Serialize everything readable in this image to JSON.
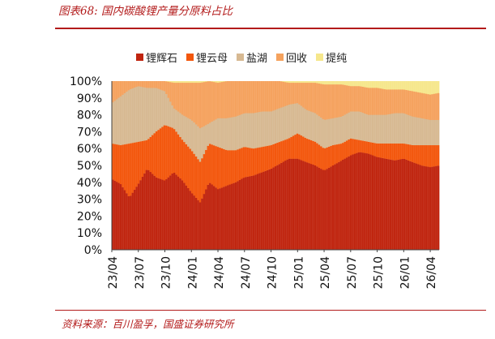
{
  "figure": {
    "title": "图表68: 国内碳酸锂产量分原料占比",
    "source": "资料来源：百川盈孚，国盛证券研究所"
  },
  "colors": {
    "brand_red": "#b31b1b"
  },
  "chart_data": {
    "type": "bar",
    "stacked": true,
    "percent_stacked": true,
    "title": "",
    "xlabel": "",
    "ylabel": "",
    "ylim": [
      0,
      100
    ],
    "y_ticks": [
      "0%",
      "10%",
      "20%",
      "30%",
      "40%",
      "50%",
      "60%",
      "70%",
      "80%",
      "90%",
      "100%"
    ],
    "x_ticks": [
      "23/04",
      "23/07",
      "23/10",
      "24/01",
      "24/04",
      "24/07",
      "24/10",
      "25/01",
      "25/04",
      "25/07",
      "25/10",
      "26/01",
      "26/04"
    ],
    "x_range": [
      "2023-04",
      "2026-05"
    ],
    "legend_position": "top",
    "grid": false,
    "series": [
      {
        "name": "锂辉石",
        "color": "#c0250f",
        "points": [
          [
            "2023-04",
            42
          ],
          [
            "2023-05",
            39
          ],
          [
            "2023-06",
            31
          ],
          [
            "2023-07",
            39
          ],
          [
            "2023-08",
            48
          ],
          [
            "2023-09",
            43
          ],
          [
            "2023-10",
            41
          ],
          [
            "2023-11",
            46
          ],
          [
            "2023-12",
            41
          ],
          [
            "2024-01",
            34
          ],
          [
            "2024-02",
            28
          ],
          [
            "2024-03",
            40
          ],
          [
            "2024-04",
            36
          ],
          [
            "2024-05",
            38
          ],
          [
            "2024-06",
            40
          ],
          [
            "2024-07",
            43
          ],
          [
            "2024-08",
            44
          ],
          [
            "2024-09",
            46
          ],
          [
            "2024-10",
            48
          ],
          [
            "2024-11",
            51
          ],
          [
            "2024-12",
            54
          ],
          [
            "2025-01",
            54
          ],
          [
            "2025-02",
            52
          ],
          [
            "2025-03",
            50
          ],
          [
            "2025-04",
            47
          ],
          [
            "2025-05",
            50
          ],
          [
            "2025-06",
            53
          ],
          [
            "2025-07",
            56
          ],
          [
            "2025-08",
            58
          ],
          [
            "2025-09",
            57
          ],
          [
            "2025-10",
            55
          ],
          [
            "2025-11",
            54
          ],
          [
            "2025-12",
            53
          ],
          [
            "2026-01",
            54
          ],
          [
            "2026-02",
            52
          ],
          [
            "2026-03",
            50
          ],
          [
            "2026-04",
            49
          ],
          [
            "2026-05",
            50
          ]
        ]
      },
      {
        "name": "锂云母",
        "color": "#f3570d",
        "points": [
          [
            "2023-04",
            21
          ],
          [
            "2023-05",
            23
          ],
          [
            "2023-06",
            32
          ],
          [
            "2023-07",
            25
          ],
          [
            "2023-08",
            17
          ],
          [
            "2023-09",
            27
          ],
          [
            "2023-10",
            33
          ],
          [
            "2023-11",
            26
          ],
          [
            "2023-12",
            24
          ],
          [
            "2024-01",
            25
          ],
          [
            "2024-02",
            24
          ],
          [
            "2024-03",
            23
          ],
          [
            "2024-04",
            25
          ],
          [
            "2024-05",
            21
          ],
          [
            "2024-06",
            19
          ],
          [
            "2024-07",
            18
          ],
          [
            "2024-08",
            16
          ],
          [
            "2024-09",
            15
          ],
          [
            "2024-10",
            14
          ],
          [
            "2024-11",
            13
          ],
          [
            "2024-12",
            12
          ],
          [
            "2025-01",
            15
          ],
          [
            "2025-02",
            14
          ],
          [
            "2025-03",
            14
          ],
          [
            "2025-04",
            13
          ],
          [
            "2025-05",
            12
          ],
          [
            "2025-06",
            10
          ],
          [
            "2025-07",
            10
          ],
          [
            "2025-08",
            7
          ],
          [
            "2025-09",
            7
          ],
          [
            "2025-10",
            8
          ],
          [
            "2025-11",
            9
          ],
          [
            "2025-12",
            10
          ],
          [
            "2026-01",
            9
          ],
          [
            "2026-02",
            10
          ],
          [
            "2026-03",
            12
          ],
          [
            "2026-04",
            13
          ],
          [
            "2026-05",
            12
          ]
        ]
      },
      {
        "name": "盐湖",
        "color": "#d7b992",
        "points": [
          [
            "2023-04",
            24
          ],
          [
            "2023-05",
            29
          ],
          [
            "2023-06",
            32
          ],
          [
            "2023-07",
            33
          ],
          [
            "2023-08",
            31
          ],
          [
            "2023-09",
            26
          ],
          [
            "2023-10",
            20
          ],
          [
            "2023-11",
            12
          ],
          [
            "2023-12",
            15
          ],
          [
            "2024-01",
            18
          ],
          [
            "2024-02",
            20
          ],
          [
            "2024-03",
            12
          ],
          [
            "2024-04",
            17
          ],
          [
            "2024-05",
            19
          ],
          [
            "2024-06",
            20
          ],
          [
            "2024-07",
            20
          ],
          [
            "2024-08",
            21
          ],
          [
            "2024-09",
            21
          ],
          [
            "2024-10",
            20
          ],
          [
            "2024-11",
            20
          ],
          [
            "2024-12",
            20
          ],
          [
            "2025-01",
            18
          ],
          [
            "2025-02",
            17
          ],
          [
            "2025-03",
            17
          ],
          [
            "2025-04",
            17
          ],
          [
            "2025-05",
            16
          ],
          [
            "2025-06",
            16
          ],
          [
            "2025-07",
            16
          ],
          [
            "2025-08",
            17
          ],
          [
            "2025-09",
            16
          ],
          [
            "2025-10",
            17
          ],
          [
            "2025-11",
            17
          ],
          [
            "2025-12",
            18
          ],
          [
            "2026-01",
            18
          ],
          [
            "2026-02",
            17
          ],
          [
            "2026-03",
            16
          ],
          [
            "2026-04",
            15
          ],
          [
            "2026-05",
            15
          ]
        ]
      },
      {
        "name": "回收",
        "color": "#f5a25e",
        "points": [
          [
            "2023-04",
            13
          ],
          [
            "2023-05",
            9
          ],
          [
            "2023-06",
            5
          ],
          [
            "2023-07",
            3
          ],
          [
            "2023-08",
            4
          ],
          [
            "2023-09",
            4
          ],
          [
            "2023-10",
            6
          ],
          [
            "2023-11",
            15
          ],
          [
            "2023-12",
            19
          ],
          [
            "2024-01",
            22
          ],
          [
            "2024-02",
            27
          ],
          [
            "2024-03",
            25
          ],
          [
            "2024-04",
            21
          ],
          [
            "2024-05",
            22
          ],
          [
            "2024-06",
            21
          ],
          [
            "2024-07",
            19
          ],
          [
            "2024-08",
            19
          ],
          [
            "2024-09",
            18
          ],
          [
            "2024-10",
            18
          ],
          [
            "2024-11",
            16
          ],
          [
            "2024-12",
            13
          ],
          [
            "2025-01",
            12
          ],
          [
            "2025-02",
            16
          ],
          [
            "2025-03",
            18
          ],
          [
            "2025-04",
            21
          ],
          [
            "2025-05",
            20
          ],
          [
            "2025-06",
            19
          ],
          [
            "2025-07",
            15
          ],
          [
            "2025-08",
            15
          ],
          [
            "2025-09",
            16
          ],
          [
            "2025-10",
            16
          ],
          [
            "2025-11",
            15
          ],
          [
            "2025-12",
            14
          ],
          [
            "2026-01",
            14
          ],
          [
            "2026-02",
            15
          ],
          [
            "2026-03",
            15
          ],
          [
            "2026-04",
            15
          ],
          [
            "2026-05",
            16
          ]
        ]
      },
      {
        "name": "提纯",
        "color": "#f6e78c",
        "points": [
          [
            "2023-04",
            0
          ],
          [
            "2023-05",
            0
          ],
          [
            "2023-06",
            0
          ],
          [
            "2023-07",
            0
          ],
          [
            "2023-08",
            0
          ],
          [
            "2023-09",
            0
          ],
          [
            "2023-10",
            0
          ],
          [
            "2023-11",
            1
          ],
          [
            "2023-12",
            1
          ],
          [
            "2024-01",
            1
          ],
          [
            "2024-02",
            1
          ],
          [
            "2024-03",
            0
          ],
          [
            "2024-04",
            1
          ],
          [
            "2024-05",
            0
          ],
          [
            "2024-06",
            0
          ],
          [
            "2024-07",
            0
          ],
          [
            "2024-08",
            0
          ],
          [
            "2024-09",
            0
          ],
          [
            "2024-10",
            0
          ],
          [
            "2024-11",
            0
          ],
          [
            "2024-12",
            1
          ],
          [
            "2025-01",
            1
          ],
          [
            "2025-02",
            1
          ],
          [
            "2025-03",
            1
          ],
          [
            "2025-04",
            2
          ],
          [
            "2025-05",
            2
          ],
          [
            "2025-06",
            2
          ],
          [
            "2025-07",
            3
          ],
          [
            "2025-08",
            3
          ],
          [
            "2025-09",
            4
          ],
          [
            "2025-10",
            4
          ],
          [
            "2025-11",
            5
          ],
          [
            "2025-12",
            5
          ],
          [
            "2026-01",
            5
          ],
          [
            "2026-02",
            6
          ],
          [
            "2026-03",
            7
          ],
          [
            "2026-04",
            8
          ],
          [
            "2026-05",
            7
          ]
        ]
      }
    ]
  }
}
